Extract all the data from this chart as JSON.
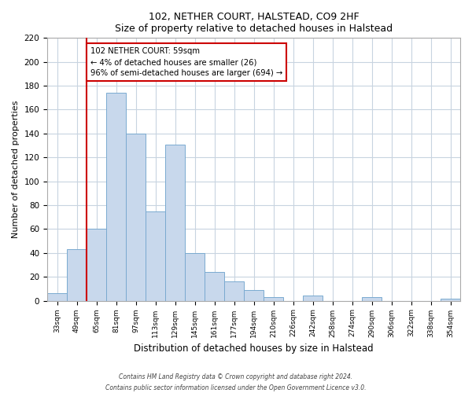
{
  "title": "102, NETHER COURT, HALSTEAD, CO9 2HF",
  "subtitle": "Size of property relative to detached houses in Halstead",
  "xlabel": "Distribution of detached houses by size in Halstead",
  "ylabel": "Number of detached properties",
  "bar_labels": [
    "33sqm",
    "49sqm",
    "65sqm",
    "81sqm",
    "97sqm",
    "113sqm",
    "129sqm",
    "145sqm",
    "161sqm",
    "177sqm",
    "194sqm",
    "210sqm",
    "226sqm",
    "242sqm",
    "258sqm",
    "274sqm",
    "290sqm",
    "306sqm",
    "322sqm",
    "338sqm",
    "354sqm"
  ],
  "bar_values": [
    6,
    43,
    60,
    174,
    140,
    75,
    131,
    40,
    24,
    16,
    9,
    3,
    0,
    4,
    0,
    0,
    3,
    0,
    0,
    0,
    2
  ],
  "bar_color": "#c8d8ec",
  "bar_edge_color": "#7aaad0",
  "vline_color": "#cc0000",
  "annotation_text": "102 NETHER COURT: 59sqm\n← 4% of detached houses are smaller (26)\n96% of semi-detached houses are larger (694) →",
  "annotation_box_color": "#ffffff",
  "annotation_box_edge": "#cc0000",
  "ylim": [
    0,
    220
  ],
  "yticks": [
    0,
    20,
    40,
    60,
    80,
    100,
    120,
    140,
    160,
    180,
    200,
    220
  ],
  "footnote1": "Contains HM Land Registry data © Crown copyright and database right 2024.",
  "footnote2": "Contains public sector information licensed under the Open Government Licence v3.0.",
  "background_color": "#ffffff",
  "grid_color": "#c8d4e0"
}
